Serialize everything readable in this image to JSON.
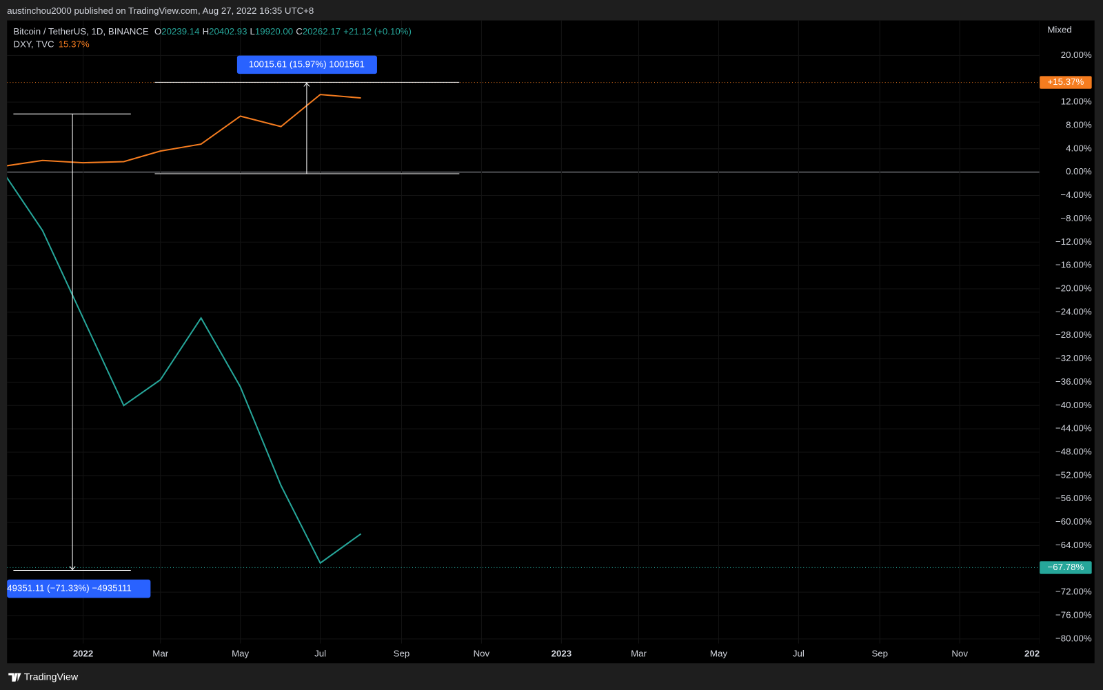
{
  "header": {
    "text": "austinchou2000 published on TradingView.com, Aug 27, 2022 16:35 UTC+8"
  },
  "legend": {
    "symbol": "Bitcoin / TetherUS, 1D, BINANCE",
    "ohlc": [
      {
        "key": "O",
        "value": "20239.14"
      },
      {
        "key": "H",
        "value": "20402.93"
      },
      {
        "key": "L",
        "value": "19920.00"
      },
      {
        "key": "C",
        "value": "20262.17"
      }
    ],
    "change": "+21.12 (+0.10%)",
    "compare_symbol": "DXY, TVC",
    "compare_value": "15.37%"
  },
  "scale_mode": "Mixed",
  "footer": {
    "brand": "TradingView"
  },
  "chart_data": {
    "type": "line",
    "x": [
      "2021-11",
      "2021-12",
      "2022-01",
      "2022-02",
      "2022-03",
      "2022-04",
      "2022-05",
      "2022-06",
      "2022-07",
      "2022-08"
    ],
    "series": [
      {
        "name": "Bitcoin / TetherUS, 1D, BINANCE",
        "color": "#26a69a",
        "values": [
          0,
          -10,
          -25,
          -40,
          -35.6,
          -25,
          -36.8,
          -53.7,
          -67,
          -62
        ],
        "last_value": -67.78,
        "last_label": "−67.78%"
      },
      {
        "name": "DXY, TVC",
        "color": "#f57c1f",
        "values": [
          1,
          2,
          1.6,
          1.8,
          3.6,
          4.8,
          9.6,
          7.8,
          13.3,
          12.7
        ],
        "last_value": 15.37,
        "last_label": "+15.37%"
      }
    ],
    "annotations": [
      "10015.61 (15.97%) 1001561",
      "49351.11 (−71.33%) −4935111"
    ],
    "xlim": [
      "2021-11",
      "2024-01"
    ],
    "xticks": [
      {
        "value": "2022-01",
        "label": "2022"
      },
      {
        "value": "2022-03",
        "label": "Mar"
      },
      {
        "value": "2022-05",
        "label": "May"
      },
      {
        "value": "2022-07",
        "label": "Jul"
      },
      {
        "value": "2022-09",
        "label": "Sep"
      },
      {
        "value": "2022-11",
        "label": "Nov"
      },
      {
        "value": "2023-01",
        "label": "2023"
      },
      {
        "value": "2023-03",
        "label": "Mar"
      },
      {
        "value": "2023-05",
        "label": "May"
      },
      {
        "value": "2023-07",
        "label": "Jul"
      },
      {
        "value": "2023-09",
        "label": "Sep"
      },
      {
        "value": "2023-11",
        "label": "Nov"
      },
      {
        "value": "2024-01",
        "label": "202"
      }
    ],
    "ylim": [
      -80.8,
      26
    ],
    "yticks": [
      {
        "value": 20,
        "label": "20.00%"
      },
      {
        "value": 12,
        "label": "12.00%"
      },
      {
        "value": 8,
        "label": "8.00%"
      },
      {
        "value": 4,
        "label": "4.00%"
      },
      {
        "value": 0,
        "label": "0.00%"
      },
      {
        "value": -4,
        "label": "−4.00%"
      },
      {
        "value": -8,
        "label": "−8.00%"
      },
      {
        "value": -12,
        "label": "−12.00%"
      },
      {
        "value": -16,
        "label": "−16.00%"
      },
      {
        "value": -20,
        "label": "−20.00%"
      },
      {
        "value": -24,
        "label": "−24.00%"
      },
      {
        "value": -28,
        "label": "−28.00%"
      },
      {
        "value": -32,
        "label": "−32.00%"
      },
      {
        "value": -36,
        "label": "−36.00%"
      },
      {
        "value": -40,
        "label": "−40.00%"
      },
      {
        "value": -44,
        "label": "−44.00%"
      },
      {
        "value": -48,
        "label": "−48.00%"
      },
      {
        "value": -52,
        "label": "−52.00%"
      },
      {
        "value": -56,
        "label": "−56.00%"
      },
      {
        "value": -60,
        "label": "−60.00%"
      },
      {
        "value": -64,
        "label": "−64.00%"
      },
      {
        "value": -72,
        "label": "−72.00%"
      },
      {
        "value": -76,
        "label": "−76.00%"
      },
      {
        "value": -80,
        "label": "−80.00%"
      }
    ],
    "grid": true
  }
}
